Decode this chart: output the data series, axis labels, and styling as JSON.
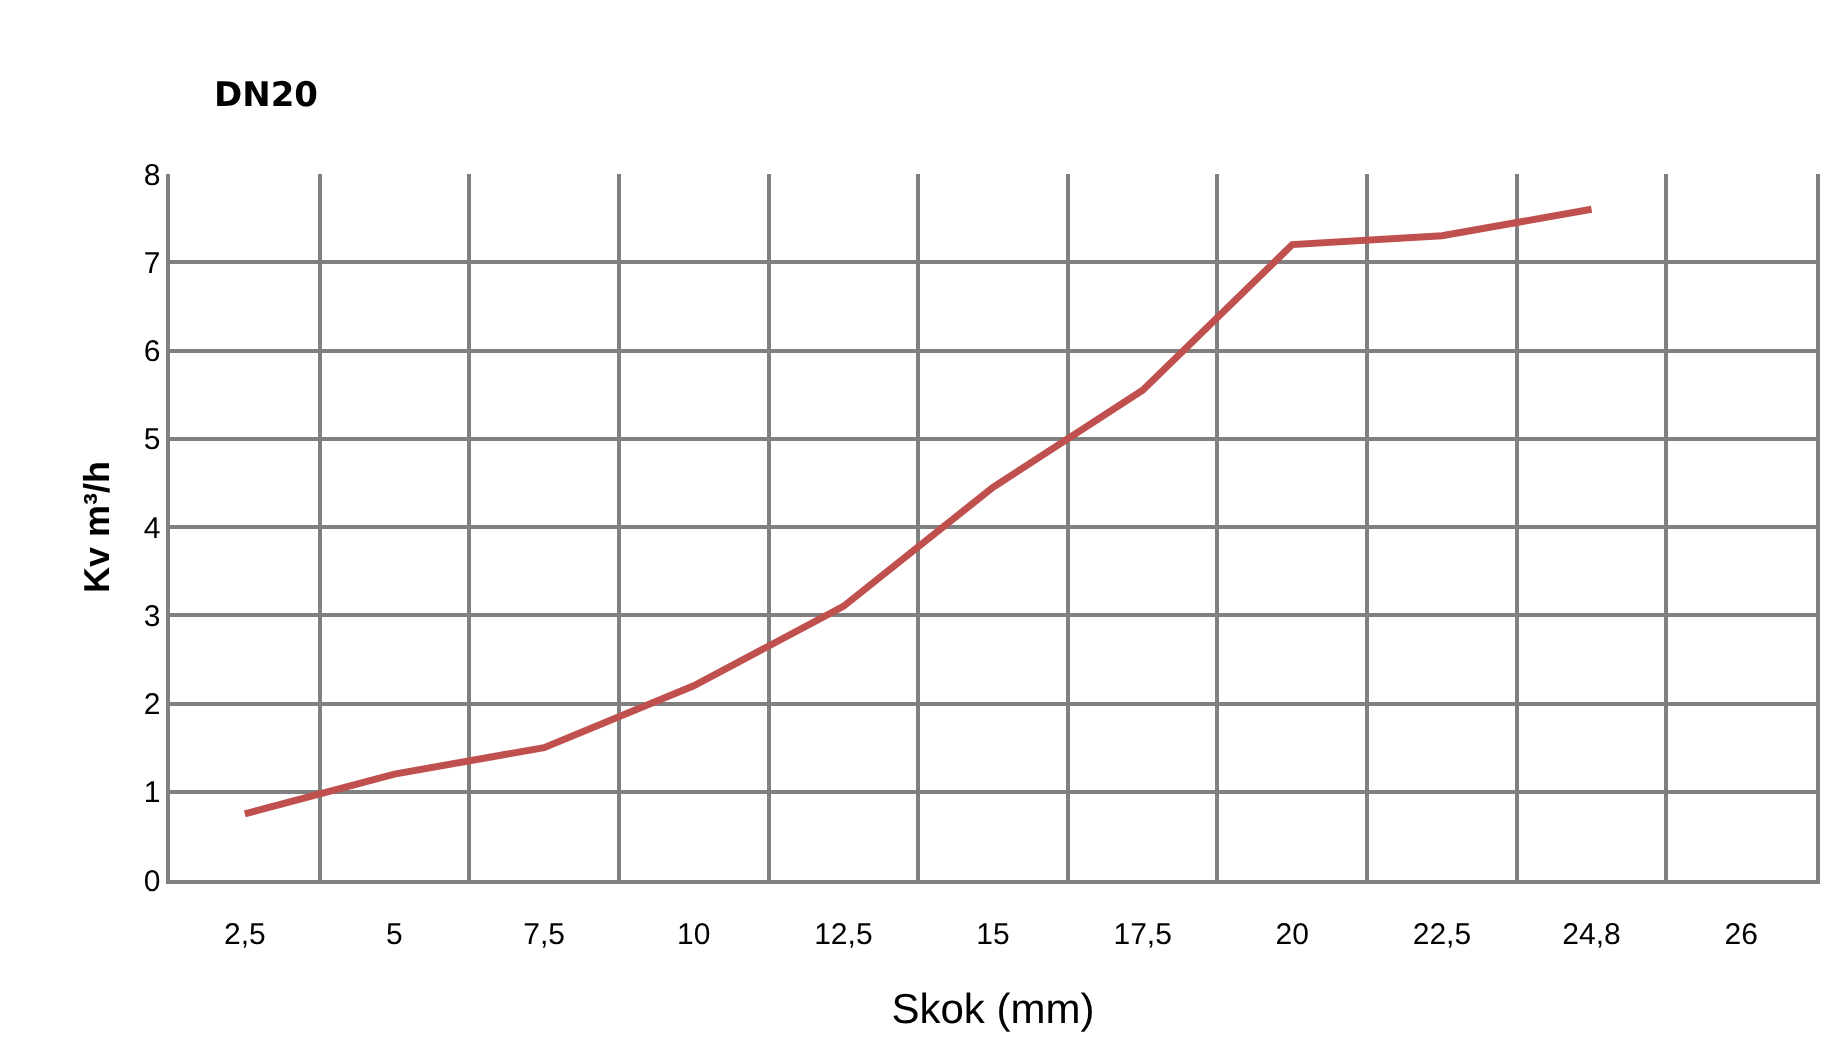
{
  "chart_data": {
    "type": "line",
    "title": "DN20",
    "xlabel": "Skok (mm)",
    "ylabel": "Kv m³/h",
    "categories": [
      "2,5",
      "5",
      "7,5",
      "10",
      "12,5",
      "15",
      "17,5",
      "20",
      "22,5",
      "24,8",
      "26"
    ],
    "series": [
      {
        "color": "#c0504d",
        "values": [
          0.75,
          1.2,
          1.5,
          2.2,
          3.1,
          4.45,
          5.55,
          7.2,
          7.3,
          7.6,
          null
        ]
      }
    ],
    "ylim": [
      0,
      8
    ],
    "yticks": [
      0,
      1,
      2,
      3,
      4,
      5,
      6,
      7,
      8
    ],
    "grid": true,
    "marker": "none",
    "line_style": "solid"
  }
}
